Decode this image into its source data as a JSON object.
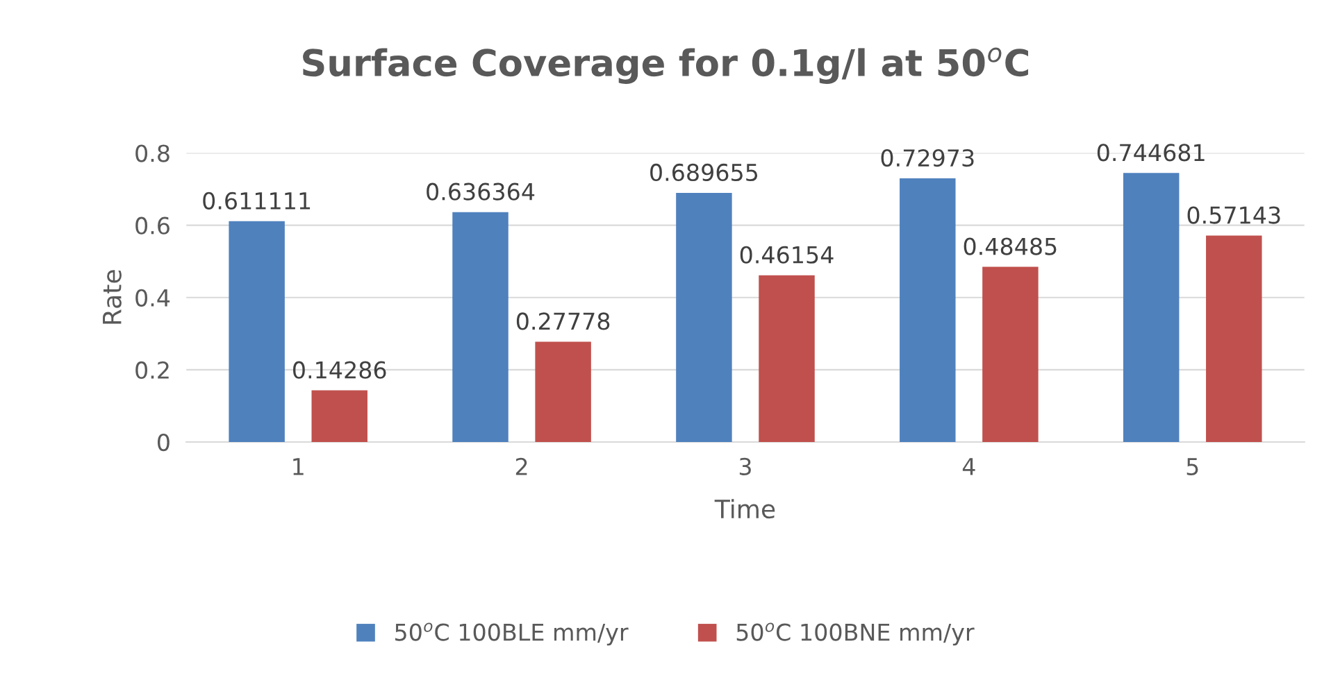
{
  "chart_data": {
    "type": "bar",
    "title": "Surface Coverage for 0.1g/l at 50$^{o}$C",
    "xlabel": "Time",
    "ylabel": "Rate",
    "categories": [
      "1",
      "2",
      "3",
      "4",
      "5"
    ],
    "series": [
      {
        "name": "50$^{o}$C 100BLE mm/yr",
        "color": "#4f81bd",
        "values": [
          0.611111,
          0.636364,
          0.689655,
          0.72973,
          0.744681
        ]
      },
      {
        "name": "50$^{o}$C 100BNE mm/yr",
        "color": "#c0504d",
        "values": [
          0.14286,
          0.27778,
          0.46154,
          0.48485,
          0.57143
        ]
      }
    ],
    "ylim": [
      0,
      0.8
    ],
    "yticks": [
      0,
      0.2,
      0.4,
      0.6,
      0.8
    ],
    "grid": "y",
    "legend": "bottom",
    "data_labels": true
  }
}
